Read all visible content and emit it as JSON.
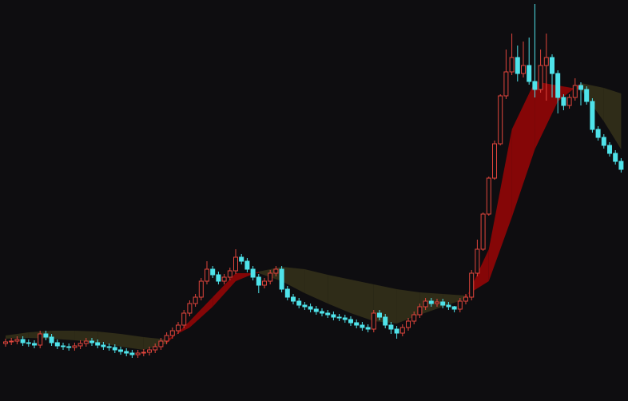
{
  "chart_data": {
    "type": "candlestick",
    "ylim": [
      0,
      502
    ],
    "background": "#0e0d10",
    "up_color": "#e0453c",
    "down_color": "#4fe3ea",
    "open": [
      72,
      74,
      75,
      77,
      73,
      72,
      70,
      84,
      80,
      73,
      69,
      68,
      67,
      69,
      72,
      75,
      73,
      70,
      68,
      67,
      64,
      62,
      60,
      58,
      60,
      61,
      64,
      68,
      75,
      82,
      88,
      95,
      110,
      122,
      130,
      150,
      165,
      158,
      150,
      155,
      163,
      180,
      175,
      165,
      155,
      145,
      150,
      160,
      165,
      140,
      130,
      125,
      120,
      118,
      115,
      112,
      110,
      108,
      105,
      104,
      102,
      98,
      95,
      92,
      90,
      110,
      105,
      95,
      90,
      85,
      92,
      100,
      108,
      118,
      125,
      122,
      124,
      120,
      118,
      115,
      125,
      130,
      160,
      190,
      234,
      279,
      322,
      382,
      412,
      430,
      410,
      420,
      400,
      390,
      420,
      430,
      410,
      380,
      370,
      380,
      395,
      390,
      375,
      340,
      330,
      320,
      310,
      300
    ],
    "high": [
      78,
      79,
      81,
      81,
      77,
      76,
      88,
      88,
      84,
      77,
      73,
      72,
      73,
      76,
      79,
      79,
      77,
      74,
      72,
      71,
      68,
      66,
      64,
      64,
      65,
      68,
      72,
      79,
      86,
      92,
      99,
      114,
      126,
      134,
      154,
      175,
      169,
      162,
      159,
      167,
      190,
      184,
      179,
      169,
      159,
      154,
      164,
      169,
      169,
      144,
      134,
      129,
      124,
      122,
      119,
      116,
      114,
      112,
      109,
      108,
      106,
      102,
      99,
      96,
      114,
      114,
      109,
      99,
      94,
      96,
      104,
      112,
      122,
      129,
      129,
      128,
      128,
      124,
      119,
      129,
      134,
      164,
      202,
      236,
      281,
      326,
      384,
      440,
      460,
      445,
      450,
      455,
      497,
      440,
      460,
      434,
      414,
      384,
      384,
      404,
      399,
      394,
      379,
      344,
      334,
      324,
      314,
      304
    ],
    "low": [
      68,
      70,
      71,
      69,
      68,
      66,
      66,
      76,
      69,
      65,
      64,
      63,
      63,
      65,
      68,
      69,
      66,
      64,
      63,
      60,
      58,
      56,
      54,
      54,
      56,
      57,
      60,
      64,
      71,
      78,
      84,
      91,
      106,
      118,
      126,
      146,
      154,
      146,
      146,
      151,
      159,
      171,
      161,
      151,
      135,
      141,
      146,
      156,
      136,
      126,
      121,
      116,
      114,
      111,
      108,
      106,
      104,
      101,
      100,
      98,
      94,
      91,
      88,
      86,
      86,
      101,
      91,
      84,
      78,
      81,
      88,
      96,
      104,
      114,
      118,
      118,
      116,
      114,
      111,
      111,
      121,
      126,
      156,
      188,
      232,
      277,
      320,
      378,
      408,
      400,
      405,
      396,
      380,
      386,
      376,
      380,
      360,
      364,
      366,
      376,
      370,
      371,
      336,
      326,
      316,
      306,
      296,
      286
    ],
    "close": [
      74,
      75,
      77,
      73,
      72,
      70,
      84,
      80,
      73,
      69,
      68,
      67,
      69,
      72,
      75,
      73,
      70,
      68,
      67,
      64,
      62,
      60,
      58,
      60,
      61,
      64,
      68,
      75,
      82,
      88,
      95,
      110,
      122,
      130,
      150,
      165,
      158,
      150,
      155,
      163,
      180,
      175,
      165,
      155,
      145,
      150,
      160,
      165,
      140,
      130,
      125,
      120,
      118,
      115,
      112,
      110,
      108,
      105,
      104,
      102,
      98,
      95,
      92,
      90,
      110,
      105,
      95,
      90,
      85,
      92,
      100,
      108,
      118,
      125,
      122,
      124,
      120,
      118,
      115,
      125,
      130,
      160,
      190,
      234,
      279,
      322,
      382,
      412,
      430,
      410,
      420,
      400,
      390,
      420,
      430,
      410,
      380,
      370,
      380,
      395,
      390,
      375,
      340,
      330,
      320,
      310,
      300,
      290
    ],
    "cloud": {
      "x": [
        0,
        4,
        8,
        12,
        16,
        20,
        24,
        28,
        32,
        36,
        40,
        44,
        48,
        52,
        56,
        60,
        64,
        68,
        72,
        76,
        80,
        84,
        88,
        92,
        96,
        100,
        104,
        107
      ],
      "fast": [
        78,
        79,
        78,
        76,
        73,
        68,
        64,
        72,
        100,
        130,
        160,
        160,
        150,
        135,
        122,
        110,
        100,
        97,
        108,
        118,
        128,
        190,
        340,
        400,
        395,
        390,
        350,
        315
      ],
      "slow": [
        82,
        86,
        88,
        88,
        87,
        84,
        80,
        77,
        92,
        118,
        150,
        162,
        168,
        165,
        158,
        152,
        146,
        140,
        136,
        134,
        132,
        150,
        230,
        315,
        375,
        398,
        392,
        385
      ],
      "bull_color": "#850607",
      "bear_color": "#2f2c18"
    }
  }
}
